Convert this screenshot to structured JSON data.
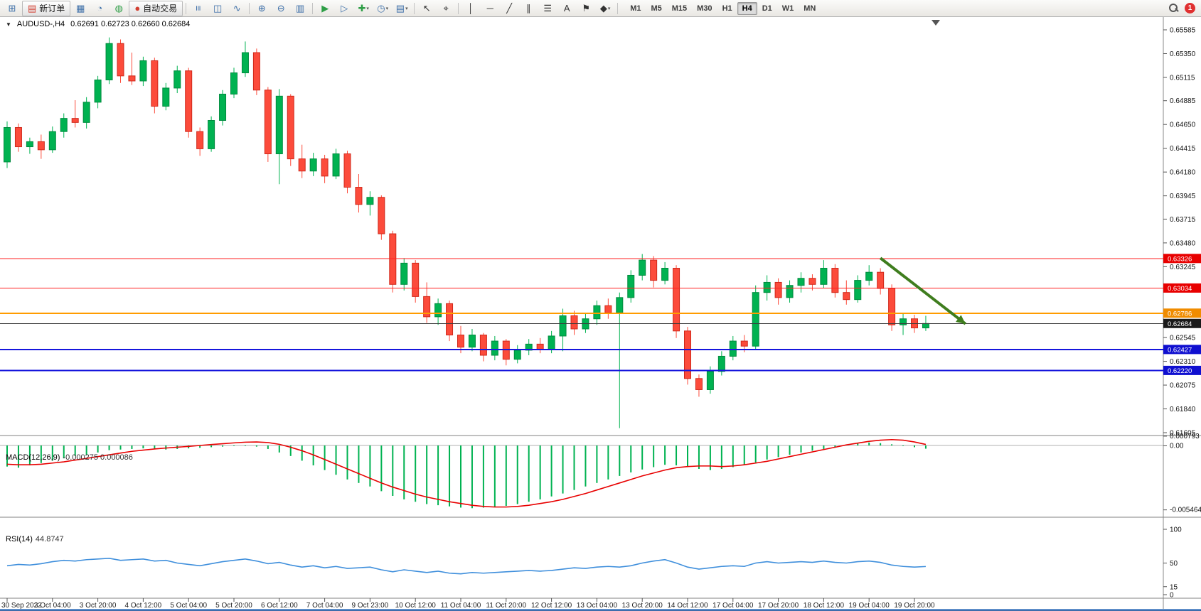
{
  "window": {
    "badge_count": "1"
  },
  "toolbar": {
    "items": [
      {
        "kind": "icon",
        "name": "new-chart-icon",
        "glyph": "⊞",
        "color": "#3d6fa8"
      },
      {
        "kind": "button",
        "name": "new-order-button",
        "glyph": "▤",
        "icon_color": "#d23f31",
        "label": "新订单"
      },
      {
        "kind": "icon",
        "name": "charts-window-icon",
        "glyph": "▦",
        "color": "#3d6fa8"
      },
      {
        "kind": "icon",
        "name": "profiles-icon",
        "glyph": "◔",
        "color": "#3d6fa8"
      },
      {
        "kind": "icon",
        "name": "market-watch-icon",
        "glyph": "◍",
        "color": "#2e9e46"
      },
      {
        "kind": "button",
        "name": "autotrading-button",
        "glyph": "●",
        "icon_color": "#d23f31",
        "label": "自动交易"
      },
      {
        "kind": "sep"
      },
      {
        "kind": "icon",
        "name": "ohlc-bars-icon",
        "glyph": "≡",
        "rot": 1,
        "color": "#3d6fa8"
      },
      {
        "kind": "icon",
        "name": "candlestick-chart-icon",
        "glyph": "◫",
        "color": "#3d6fa8"
      },
      {
        "kind": "icon",
        "name": "line-chart-icon",
        "glyph": "∿",
        "color": "#3d6fa8"
      },
      {
        "kind": "sep"
      },
      {
        "kind": "icon",
        "name": "zoom-in-icon",
        "glyph": "⊕",
        "color": "#3d6fa8"
      },
      {
        "kind": "icon",
        "name": "zoom-out-icon",
        "glyph": "⊖",
        "color": "#3d6fa8"
      },
      {
        "kind": "icon",
        "name": "tile-windows-icon",
        "glyph": "▥",
        "color": "#3d6fa8"
      },
      {
        "kind": "sep"
      },
      {
        "kind": "icon",
        "name": "auto-scroll-icon",
        "glyph": "▶",
        "color": "#2e9e46"
      },
      {
        "kind": "icon",
        "name": "chart-shift-icon",
        "glyph": "▷",
        "color": "#3d6fa8"
      },
      {
        "kind": "icon",
        "name": "indicators-add-icon",
        "glyph": "✚",
        "color": "#2e9e46",
        "caret": 1
      },
      {
        "kind": "icon",
        "name": "periods-clock-icon",
        "glyph": "◷",
        "color": "#3d6fa8",
        "caret": 1
      },
      {
        "kind": "icon",
        "name": "template-icon",
        "glyph": "▤",
        "color": "#3d6fa8",
        "caret": 1
      },
      {
        "kind": "sep"
      },
      {
        "kind": "icon",
        "name": "cursor-icon",
        "glyph": "↖",
        "color": "#333333"
      },
      {
        "kind": "icon",
        "name": "crosshair-icon",
        "glyph": "⌖",
        "color": "#333333"
      },
      {
        "kind": "sep"
      },
      {
        "kind": "icon",
        "name": "vertical-line-icon",
        "glyph": "│",
        "color": "#333333"
      },
      {
        "kind": "icon",
        "name": "horizontal-line-icon",
        "glyph": "─",
        "color": "#333333"
      },
      {
        "kind": "icon",
        "name": "trendline-icon",
        "glyph": "╱",
        "color": "#333333"
      },
      {
        "kind": "icon",
        "name": "equidistant-channel-icon",
        "glyph": "∥",
        "color": "#333333"
      },
      {
        "kind": "icon",
        "name": "fibonacci-icon",
        "glyph": "☰",
        "color": "#333333"
      },
      {
        "kind": "icon",
        "name": "text-icon",
        "glyph": "A",
        "color": "#333333"
      },
      {
        "kind": "icon",
        "name": "text-label-icon",
        "glyph": "⚑",
        "color": "#333333"
      },
      {
        "kind": "icon",
        "name": "arrows-shapes-icon",
        "glyph": "◆",
        "color": "#333333",
        "caret": 1
      },
      {
        "kind": "sep"
      }
    ],
    "timeframes": [
      "M1",
      "M5",
      "M15",
      "M30",
      "H1",
      "H4",
      "D1",
      "W1",
      "MN"
    ],
    "active_timeframe": "H4"
  },
  "chart": {
    "symbol_title": "AUDUSD-,H4",
    "ohlc_text": "0.62691 0.62723 0.62660 0.62684",
    "macd_label": "MACD(12,26,9)",
    "macd_values": "-0.000275 0.000086",
    "rsi_label": "RSI(14)",
    "rsi_value": "44.8747"
  },
  "chart_data": {
    "type": "candlestick",
    "symbol": "AUDUSD-",
    "timeframe": "H4",
    "current_ohlc": {
      "open": 0.62691,
      "high": 0.62723,
      "low": 0.6266,
      "close": 0.62684
    },
    "price_axis": {
      "max": 0.65585,
      "min": 0.61605,
      "ticks": [
        "0.65585",
        "0.65350",
        "0.65115",
        "0.64885",
        "0.64650",
        "0.64415",
        "0.64180",
        "0.63945",
        "0.63715",
        "0.63480",
        "0.63245",
        "0.62545",
        "0.62310",
        "0.62075",
        "0.61840",
        "0.61605"
      ]
    },
    "colors": {
      "up": "#00b251",
      "down": "#fc4b3b",
      "up_border": "#008a3e",
      "down_border": "#cf291b",
      "macd_hist": "#00b251",
      "macd_signal": "#e80000",
      "rsi_line": "#3f8fdc",
      "background": "#ffffff"
    },
    "candles": [
      [
        0.6428,
        0.6468,
        0.6422,
        0.6462
      ],
      [
        0.6462,
        0.6466,
        0.6438,
        0.6443
      ],
      [
        0.6443,
        0.6452,
        0.6436,
        0.6448
      ],
      [
        0.6448,
        0.6455,
        0.6431,
        0.644
      ],
      [
        0.644,
        0.6463,
        0.6437,
        0.6458
      ],
      [
        0.6458,
        0.6476,
        0.6452,
        0.6471
      ],
      [
        0.6471,
        0.6489,
        0.6462,
        0.6467
      ],
      [
        0.6467,
        0.6492,
        0.6461,
        0.6487
      ],
      [
        0.6487,
        0.6513,
        0.6481,
        0.6509
      ],
      [
        0.6509,
        0.6551,
        0.6505,
        0.6545
      ],
      [
        0.6545,
        0.6549,
        0.6506,
        0.6513
      ],
      [
        0.6513,
        0.6536,
        0.6504,
        0.6508
      ],
      [
        0.6508,
        0.6532,
        0.6503,
        0.6528
      ],
      [
        0.6528,
        0.6531,
        0.6476,
        0.6483
      ],
      [
        0.6483,
        0.6506,
        0.6479,
        0.6501
      ],
      [
        0.6501,
        0.6523,
        0.6496,
        0.6518
      ],
      [
        0.6518,
        0.6521,
        0.6452,
        0.6458
      ],
      [
        0.6458,
        0.6462,
        0.6434,
        0.6441
      ],
      [
        0.6441,
        0.6473,
        0.6438,
        0.6469
      ],
      [
        0.6469,
        0.6499,
        0.6464,
        0.6495
      ],
      [
        0.6495,
        0.6521,
        0.6491,
        0.6516
      ],
      [
        0.6516,
        0.6547,
        0.6512,
        0.6536
      ],
      [
        0.6536,
        0.654,
        0.6494,
        0.6499
      ],
      [
        0.6499,
        0.6502,
        0.6428,
        0.6436
      ],
      [
        0.6436,
        0.65,
        0.6406,
        0.6493
      ],
      [
        0.6493,
        0.6495,
        0.6424,
        0.6431
      ],
      [
        0.6431,
        0.6445,
        0.6412,
        0.6419
      ],
      [
        0.6419,
        0.6437,
        0.6414,
        0.6431
      ],
      [
        0.6431,
        0.6435,
        0.6407,
        0.6414
      ],
      [
        0.6414,
        0.6441,
        0.6411,
        0.6436
      ],
      [
        0.6436,
        0.6439,
        0.6397,
        0.6403
      ],
      [
        0.6403,
        0.6416,
        0.6378,
        0.6386
      ],
      [
        0.6386,
        0.6399,
        0.6375,
        0.6393
      ],
      [
        0.6393,
        0.6395,
        0.6351,
        0.6357
      ],
      [
        0.6357,
        0.636,
        0.6299,
        0.6307
      ],
      [
        0.6307,
        0.6333,
        0.6301,
        0.6328
      ],
      [
        0.6328,
        0.6331,
        0.6289,
        0.6295
      ],
      [
        0.6295,
        0.6309,
        0.6269,
        0.6275
      ],
      [
        0.6275,
        0.6293,
        0.6267,
        0.6288
      ],
      [
        0.6288,
        0.6291,
        0.6251,
        0.6257
      ],
      [
        0.6257,
        0.6266,
        0.6239,
        0.6245
      ],
      [
        0.6245,
        0.6263,
        0.6241,
        0.6257
      ],
      [
        0.6257,
        0.6259,
        0.6231,
        0.6237
      ],
      [
        0.6237,
        0.6256,
        0.6232,
        0.6251
      ],
      [
        0.6251,
        0.6253,
        0.6227,
        0.6233
      ],
      [
        0.6233,
        0.6247,
        0.6229,
        0.6242
      ],
      [
        0.6242,
        0.6253,
        0.6237,
        0.6248
      ],
      [
        0.6248,
        0.6254,
        0.6239,
        0.6243
      ],
      [
        0.6243,
        0.6261,
        0.6239,
        0.6256
      ],
      [
        0.6256,
        0.6283,
        0.6241,
        0.6276
      ],
      [
        0.6276,
        0.6281,
        0.6257,
        0.6263
      ],
      [
        0.6263,
        0.6279,
        0.6259,
        0.6273
      ],
      [
        0.6273,
        0.6291,
        0.6267,
        0.6286
      ],
      [
        0.6286,
        0.6293,
        0.6273,
        0.6279
      ],
      [
        0.6279,
        0.6299,
        0.6165,
        0.6294
      ],
      [
        0.6294,
        0.6321,
        0.6289,
        0.6316
      ],
      [
        0.6316,
        0.6337,
        0.6311,
        0.6331
      ],
      [
        0.6331,
        0.6335,
        0.6304,
        0.6311
      ],
      [
        0.6311,
        0.6329,
        0.6307,
        0.6323
      ],
      [
        0.6323,
        0.6326,
        0.6254,
        0.6261
      ],
      [
        0.6261,
        0.6265,
        0.6208,
        0.6214
      ],
      [
        0.6214,
        0.6218,
        0.6196,
        0.6203
      ],
      [
        0.6203,
        0.6226,
        0.6199,
        0.6221
      ],
      [
        0.6221,
        0.6241,
        0.6217,
        0.6236
      ],
      [
        0.6236,
        0.6256,
        0.6232,
        0.6251
      ],
      [
        0.6251,
        0.6257,
        0.624,
        0.6246
      ],
      [
        0.6246,
        0.6306,
        0.6242,
        0.6299
      ],
      [
        0.6299,
        0.6316,
        0.6291,
        0.6309
      ],
      [
        0.6309,
        0.6313,
        0.6287,
        0.6294
      ],
      [
        0.6294,
        0.6311,
        0.6289,
        0.6306
      ],
      [
        0.6306,
        0.6319,
        0.6299,
        0.6313
      ],
      [
        0.6313,
        0.6317,
        0.6301,
        0.6307
      ],
      [
        0.6307,
        0.6331,
        0.6303,
        0.6323
      ],
      [
        0.6323,
        0.6327,
        0.6294,
        0.6299
      ],
      [
        0.6299,
        0.6311,
        0.6287,
        0.6292
      ],
      [
        0.6292,
        0.6316,
        0.6289,
        0.6311
      ],
      [
        0.6311,
        0.6326,
        0.6306,
        0.6319
      ],
      [
        0.6319,
        0.6323,
        0.6297,
        0.6303
      ],
      [
        0.6303,
        0.6307,
        0.6261,
        0.6267
      ],
      [
        0.6267,
        0.6279,
        0.6257,
        0.6273
      ],
      [
        0.6273,
        0.6277,
        0.6259,
        0.6264
      ],
      [
        0.6264,
        0.6276,
        0.6261,
        0.62684
      ]
    ],
    "hlines": [
      {
        "price": 0.63326,
        "color": "#ff2020",
        "tag": "#e80000",
        "width": 1
      },
      {
        "price": 0.63034,
        "color": "#ff2020",
        "tag": "#e80000",
        "width": 1
      },
      {
        "price": 0.62786,
        "color": "#ff9c00",
        "tag": "#f08c00",
        "width": 2
      },
      {
        "price": 0.62684,
        "color": "#3a3a3a",
        "tag": "#1a1a1a",
        "width": 1,
        "role": "current-price"
      },
      {
        "price": 0.62427,
        "color": "#1515dd",
        "tag": "#0f0fd0",
        "width": 2
      },
      {
        "price": 0.6222,
        "color": "#1515dd",
        "tag": "#0f0fd0",
        "width": 2
      }
    ],
    "time_labels": [
      "30 Sep 2022",
      "3 Oct 04:00",
      "3 Oct 20:00",
      "4 Oct 12:00",
      "5 Oct 04:00",
      "5 Oct 20:00",
      "6 Oct 12:00",
      "7 Oct 04:00",
      "9 Oct 23:00",
      "10 Oct 12:00",
      "11 Oct 04:00",
      "11 Oct 20:00",
      "12 Oct 12:00",
      "13 Oct 04:00",
      "13 Oct 20:00",
      "14 Oct 12:00",
      "17 Oct 04:00",
      "17 Oct 20:00",
      "18 Oct 12:00",
      "19 Oct 04:00",
      "19 Oct 20:00"
    ],
    "bars_per_label": 4,
    "macd": {
      "params": "12,26,9",
      "axis_labels": [
        "0.000793",
        "0.00",
        "-0.005464"
      ],
      "hist": [
        -0.0018,
        -0.0019,
        -0.0017,
        -0.0015,
        -0.0013,
        -0.0011,
        -0.0009,
        -0.0008,
        -0.0006,
        -0.0004,
        -0.00035,
        -0.0003,
        -0.00025,
        -0.0003,
        -0.00035,
        -0.0003,
        -0.00025,
        -0.0002,
        -0.00015,
        -0.0001,
        -5e-05,
        -5e-05,
        -0.0001,
        -0.0003,
        -0.0006,
        -0.0009,
        -0.0013,
        -0.0017,
        -0.0021,
        -0.0025,
        -0.0029,
        -0.0032,
        -0.0035,
        -0.0039,
        -0.0043,
        -0.0046,
        -0.0048,
        -0.005,
        -0.0051,
        -0.0052,
        -0.0053,
        -0.00535,
        -0.0053,
        -0.00525,
        -0.00515,
        -0.005,
        -0.0048,
        -0.0046,
        -0.00435,
        -0.0041,
        -0.0038,
        -0.0035,
        -0.0032,
        -0.0029,
        -0.0026,
        -0.0023,
        -0.00205,
        -0.00185,
        -0.00165,
        -0.0017,
        -0.00185,
        -0.002,
        -0.0021,
        -0.002,
        -0.00185,
        -0.00165,
        -0.00145,
        -0.0012,
        -0.001,
        -0.0008,
        -0.0006,
        -0.00045,
        -0.0003,
        -0.00015,
        0.0,
        0.00015,
        0.00025,
        0.0002,
        0.0001,
        -5e-05,
        -0.00015,
        -0.000275
      ],
      "signal": [
        -0.0016,
        -0.00165,
        -0.00165,
        -0.0016,
        -0.0015,
        -0.0014,
        -0.00125,
        -0.0011,
        -0.00095,
        -0.0008,
        -0.00065,
        -0.0005,
        -0.0004,
        -0.0003,
        -0.00022,
        -0.00015,
        -8e-05,
        0.0,
        8e-05,
        0.00015,
        0.00022,
        0.00028,
        0.0003,
        0.00025,
        0.0001,
        -0.00015,
        -0.00045,
        -0.0008,
        -0.0012,
        -0.0016,
        -0.002,
        -0.0024,
        -0.0028,
        -0.0032,
        -0.00355,
        -0.00385,
        -0.00415,
        -0.0044,
        -0.0046,
        -0.0048,
        -0.00495,
        -0.0051,
        -0.0052,
        -0.00525,
        -0.00525,
        -0.0052,
        -0.0051,
        -0.00495,
        -0.0048,
        -0.0046,
        -0.00435,
        -0.0041,
        -0.0038,
        -0.0035,
        -0.0032,
        -0.0029,
        -0.0026,
        -0.00235,
        -0.0021,
        -0.0019,
        -0.0018,
        -0.00175,
        -0.00175,
        -0.0018,
        -0.00175,
        -0.00165,
        -0.0015,
        -0.00135,
        -0.00115,
        -0.00095,
        -0.00075,
        -0.00055,
        -0.00035,
        -0.00015,
        5e-05,
        0.0002,
        0.00035,
        0.00045,
        0.0005,
        0.00045,
        0.0003,
        8.6e-05
      ]
    },
    "rsi": {
      "period": 14,
      "axis_labels": [
        "100",
        "50",
        "15",
        "0"
      ],
      "values": [
        46,
        48,
        47,
        49,
        52,
        54,
        53,
        55,
        56,
        57,
        54,
        55,
        56,
        53,
        54,
        50,
        48,
        46,
        49,
        52,
        54,
        56,
        53,
        49,
        51,
        47,
        44,
        46,
        43,
        45,
        42,
        43,
        44,
        40,
        37,
        40,
        38,
        36,
        38,
        35,
        34,
        36,
        35,
        36,
        37,
        38,
        39,
        38,
        39,
        41,
        43,
        42,
        44,
        45,
        44,
        46,
        50,
        53,
        55,
        50,
        44,
        41,
        43,
        45,
        46,
        45,
        50,
        52,
        50,
        51,
        52,
        51,
        53,
        51,
        50,
        52,
        53,
        51,
        47,
        45,
        44,
        44.87
      ]
    },
    "trend_arrow": {
      "from_bar": 77,
      "from_price": 0.6333,
      "to_bar": 84.5,
      "to_price": 0.6268,
      "color": "#3f7d1e"
    }
  }
}
